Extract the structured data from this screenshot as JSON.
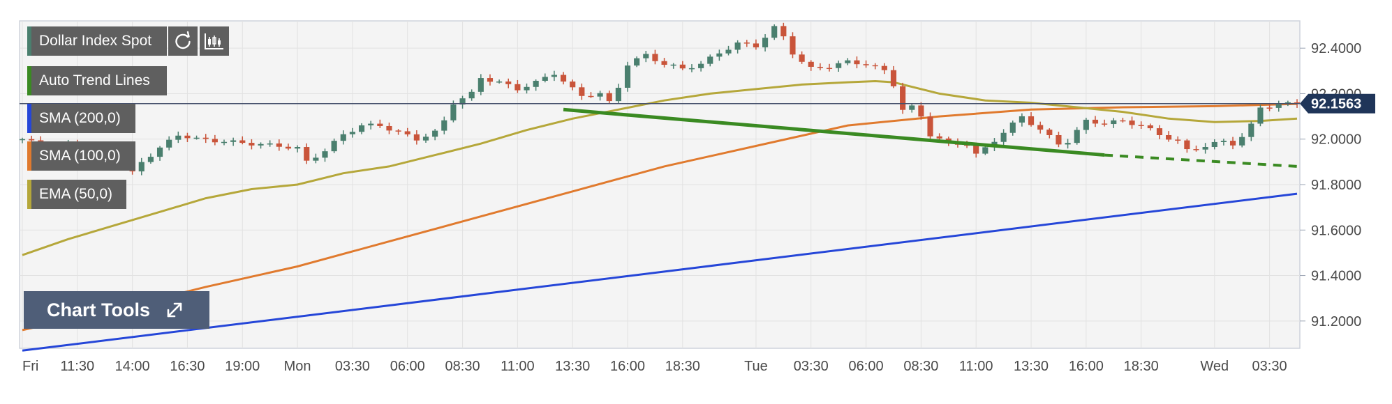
{
  "legend": {
    "symbol": "Dollar Index Spot",
    "trend": "Auto Trend Lines",
    "sma200": "SMA (200,0)",
    "sma100": "SMA (100,0)",
    "ema50": "EMA (50,0)"
  },
  "chart_tools": {
    "label": "Chart Tools"
  },
  "colors": {
    "up": "#4a7f6e",
    "down": "#c9543a",
    "sma200": "#2546d8",
    "sma100": "#e07a2e",
    "ema50": "#b5a73a",
    "trend": "#3a8a22",
    "price_line": "#45506b",
    "price_label_bg": "#1f3559",
    "plot_bg": "#f4f4f4",
    "grid": "#e2e2e2"
  },
  "chart_data": {
    "type": "candlestick",
    "title": "Dollar Index Spot",
    "y_ticks": [
      "92.4000",
      "92.2000",
      "92.0000",
      "91.8000",
      "91.6000",
      "91.4000",
      "91.2000"
    ],
    "y_tick_values": [
      92.4,
      92.2,
      92.0,
      91.8,
      91.6,
      91.4,
      91.2
    ],
    "ylim": [
      91.08,
      92.52
    ],
    "x_ticks": [
      "Fri",
      "11:30",
      "14:00",
      "16:30",
      "19:00",
      "Mon",
      "03:30",
      "06:00",
      "08:30",
      "11:00",
      "13:30",
      "16:00",
      "18:30",
      "Tue",
      "03:30",
      "06:00",
      "08:30",
      "11:00",
      "13:30",
      "16:00",
      "18:30",
      "Wed",
      "03:30"
    ],
    "x_tick_index": [
      0,
      6,
      12,
      18,
      24,
      30,
      36,
      42,
      48,
      54,
      60,
      66,
      72,
      80,
      86,
      92,
      98,
      104,
      110,
      116,
      122,
      130,
      136
    ],
    "n_bars": 140,
    "current_price": "92.1563",
    "current_price_value": 92.1563,
    "grid": true,
    "price_anchors": [
      [
        0,
        92.0
      ],
      [
        3,
        91.96
      ],
      [
        6,
        91.98
      ],
      [
        9,
        91.9
      ],
      [
        11,
        91.88
      ],
      [
        12,
        91.85
      ],
      [
        13,
        91.9
      ],
      [
        15,
        91.96
      ],
      [
        17,
        92.02
      ],
      [
        19,
        92.0
      ],
      [
        22,
        91.99
      ],
      [
        25,
        91.98
      ],
      [
        28,
        91.97
      ],
      [
        30,
        91.96
      ],
      [
        31,
        91.9
      ],
      [
        33,
        91.95
      ],
      [
        35,
        92.02
      ],
      [
        37,
        92.06
      ],
      [
        39,
        92.06
      ],
      [
        41,
        92.03
      ],
      [
        43,
        92.0
      ],
      [
        45,
        92.03
      ],
      [
        46,
        92.08
      ],
      [
        47,
        92.16
      ],
      [
        49,
        92.2
      ],
      [
        50,
        92.27
      ],
      [
        52,
        92.25
      ],
      [
        54,
        92.22
      ],
      [
        56,
        92.25
      ],
      [
        58,
        92.29
      ],
      [
        60,
        92.22
      ],
      [
        61,
        92.19
      ],
      [
        63,
        92.2
      ],
      [
        64,
        92.16
      ],
      [
        65,
        92.23
      ],
      [
        66,
        92.33
      ],
      [
        68,
        92.37
      ],
      [
        70,
        92.33
      ],
      [
        72,
        92.31
      ],
      [
        73,
        92.32
      ],
      [
        74,
        92.33
      ],
      [
        76,
        92.38
      ],
      [
        78,
        92.42
      ],
      [
        80,
        92.41
      ],
      [
        81,
        92.45
      ],
      [
        82,
        92.49
      ],
      [
        83,
        92.45
      ],
      [
        84,
        92.38
      ],
      [
        85,
        92.34
      ],
      [
        86,
        92.31
      ],
      [
        88,
        92.32
      ],
      [
        90,
        92.34
      ],
      [
        92,
        92.33
      ],
      [
        94,
        92.3
      ],
      [
        95,
        92.24
      ],
      [
        96,
        92.13
      ],
      [
        97,
        92.14
      ],
      [
        98,
        92.1
      ],
      [
        99,
        92.02
      ],
      [
        101,
        91.98
      ],
      [
        103,
        91.98
      ],
      [
        104,
        91.93
      ],
      [
        105,
        91.96
      ],
      [
        107,
        92.03
      ],
      [
        109,
        92.1
      ],
      [
        111,
        92.04
      ],
      [
        113,
        91.98
      ],
      [
        114,
        91.99
      ],
      [
        116,
        92.08
      ],
      [
        118,
        92.07
      ],
      [
        120,
        92.08
      ],
      [
        122,
        92.06
      ],
      [
        124,
        92.02
      ],
      [
        126,
        91.99
      ],
      [
        127,
        91.95
      ],
      [
        129,
        91.97
      ],
      [
        131,
        91.99
      ],
      [
        132,
        91.98
      ],
      [
        133,
        92.01
      ],
      [
        134,
        92.06
      ],
      [
        135,
        92.14
      ],
      [
        137,
        92.15
      ],
      [
        139,
        92.16
      ]
    ],
    "sma200": {
      "from": [
        0,
        91.07
      ],
      "to": [
        139,
        91.76
      ]
    },
    "sma100": [
      [
        0,
        91.16
      ],
      [
        10,
        91.25
      ],
      [
        20,
        91.35
      ],
      [
        30,
        91.44
      ],
      [
        40,
        91.55
      ],
      [
        50,
        91.66
      ],
      [
        60,
        91.77
      ],
      [
        70,
        91.88
      ],
      [
        80,
        91.97
      ],
      [
        90,
        92.06
      ],
      [
        100,
        92.1
      ],
      [
        110,
        92.13
      ],
      [
        120,
        92.14
      ],
      [
        130,
        92.145
      ],
      [
        139,
        92.155
      ]
    ],
    "ema50": [
      [
        0,
        91.49
      ],
      [
        5,
        91.56
      ],
      [
        10,
        91.62
      ],
      [
        15,
        91.68
      ],
      [
        20,
        91.74
      ],
      [
        25,
        91.78
      ],
      [
        30,
        91.8
      ],
      [
        35,
        91.85
      ],
      [
        40,
        91.88
      ],
      [
        45,
        91.93
      ],
      [
        50,
        91.98
      ],
      [
        55,
        92.04
      ],
      [
        60,
        92.09
      ],
      [
        65,
        92.13
      ],
      [
        70,
        92.17
      ],
      [
        75,
        92.2
      ],
      [
        80,
        92.22
      ],
      [
        85,
        92.24
      ],
      [
        90,
        92.25
      ],
      [
        93,
        92.255
      ],
      [
        95,
        92.25
      ],
      [
        100,
        92.2
      ],
      [
        105,
        92.17
      ],
      [
        110,
        92.16
      ],
      [
        115,
        92.14
      ],
      [
        120,
        92.12
      ],
      [
        125,
        92.09
      ],
      [
        130,
        92.075
      ],
      [
        135,
        92.08
      ],
      [
        139,
        92.09
      ]
    ],
    "trend_line": {
      "solid_from": [
        59,
        92.13
      ],
      "solid_to": [
        118,
        91.93
      ],
      "dashed_to": [
        139,
        91.88
      ]
    }
  }
}
